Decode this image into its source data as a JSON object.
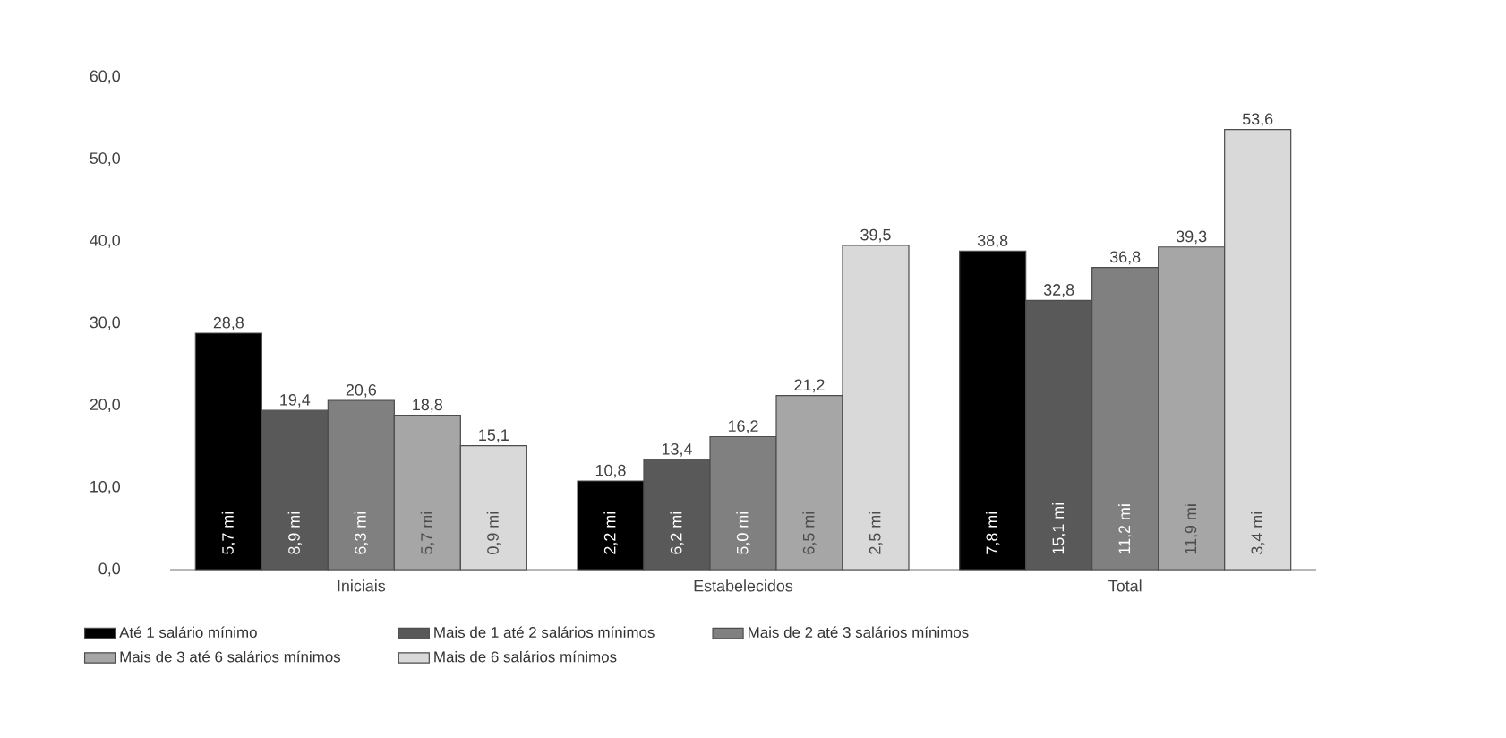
{
  "chart_data": {
    "type": "bar",
    "categories": [
      "Iniciais",
      "Estabelecidos",
      "Total"
    ],
    "series": [
      {
        "name": "Até 1 salário mínimo",
        "color": "#000000",
        "values": [
          28.8,
          10.8,
          38.8
        ],
        "value_labels": [
          "28,8",
          "10,8",
          "38,8"
        ]
      },
      {
        "name": "Mais de 1 até 2 salários mínimos",
        "color": "#595959",
        "values": [
          19.4,
          13.4,
          32.8
        ],
        "value_labels": [
          "19,4",
          "13,4",
          "32,8"
        ]
      },
      {
        "name": "Mais de 2 até 3 salários mínimos",
        "color": "#808080",
        "values": [
          20.6,
          16.2,
          36.8
        ],
        "value_labels": [
          "20,6",
          "16,2",
          "36,8"
        ]
      },
      {
        "name": "Mais de 3 até 6 salários mínimos",
        "color": "#a6a6a6",
        "values": [
          18.8,
          21.2,
          39.3
        ],
        "value_labels": [
          "18,8",
          "21,2",
          "39,3"
        ]
      },
      {
        "name": "Mais de 6 salários mínimos",
        "color": "#d9d9d9",
        "values": [
          15.1,
          39.5,
          53.6
        ],
        "value_labels": [
          "15,1",
          "39,5",
          "53,6"
        ]
      }
    ],
    "annotations": [
      "5,7 mi",
      "2,2 mi",
      "7,8 mi",
      "8,9 mi",
      "6,2 mi",
      "15,1 mi",
      "6,3 mi",
      "5,0 mi",
      "11,2 mi",
      "5,7 mi",
      "6,5 mi",
      "11,9 mi",
      "0,9 mi",
      "2,5 mi",
      "3,4 mi"
    ],
    "ylim": [
      0,
      60
    ],
    "yticks": [
      {
        "value": 0,
        "label": "0,0"
      },
      {
        "value": 10,
        "label": "10,0"
      },
      {
        "value": 20,
        "label": "20,0"
      },
      {
        "value": 30,
        "label": "30,0"
      },
      {
        "value": 40,
        "label": "40,0"
      },
      {
        "value": 50,
        "label": "50,0"
      },
      {
        "value": 60,
        "label": "60,0"
      }
    ],
    "grid": false,
    "legend": "bottom"
  }
}
